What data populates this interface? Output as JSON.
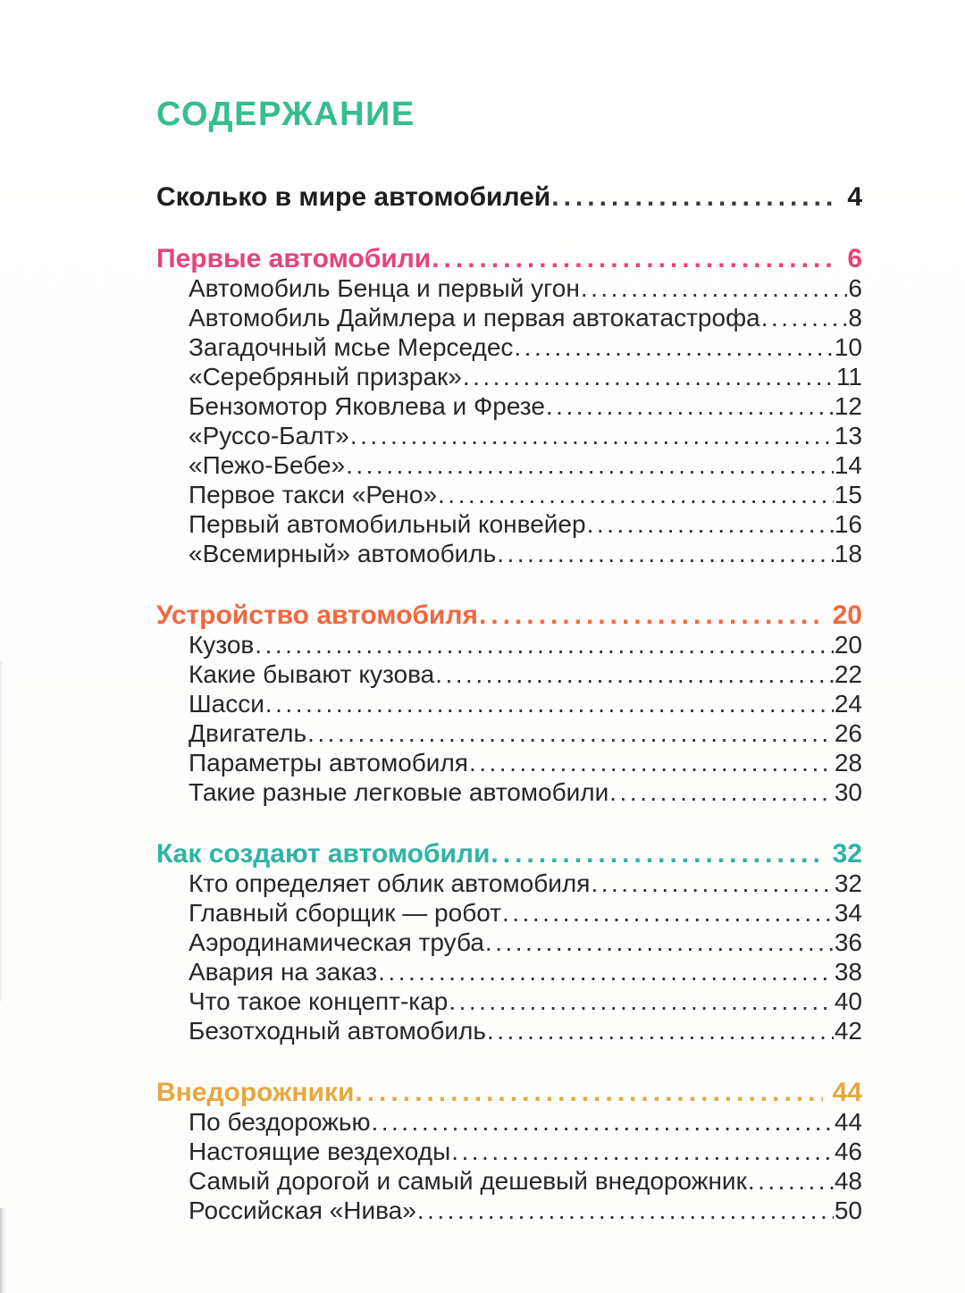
{
  "page": {
    "title": "СОДЕРЖАНИЕ",
    "title_color": "#35bd92",
    "text_color": "#272727"
  },
  "toc": {
    "intro": {
      "label": "Сколько в мире автомобилей",
      "page": "4"
    },
    "sections": [
      {
        "title": "Первые автомобили",
        "page": "6",
        "color": "#e74379",
        "items": [
          {
            "label": "Автомобиль Бенца и первый угон",
            "page": "6"
          },
          {
            "label": "Автомобиль Даймлера и первая автокатастрофа",
            "page": "8"
          },
          {
            "label": "Загадочный мсье Мерседес",
            "page": "10"
          },
          {
            "label": "«Серебряный призрак»",
            "page": "11"
          },
          {
            "label": "Бензомотор Яковлева и Фрезе",
            "page": "12"
          },
          {
            "label": "«Руссо-Балт»",
            "page": "13"
          },
          {
            "label": "«Пежо-Бебе»",
            "page": "14"
          },
          {
            "label": "Первое такси «Рено»",
            "page": "15"
          },
          {
            "label": "Первый автомобильный конвейер",
            "page": "16"
          },
          {
            "label": "«Всемирный» автомобиль",
            "page": "18"
          }
        ]
      },
      {
        "title": "Устройство автомобиля",
        "page": "20",
        "color": "#f3683f",
        "items": [
          {
            "label": "Кузов",
            "page": "20"
          },
          {
            "label": "Какие бывают кузова",
            "page": "22"
          },
          {
            "label": "Шасси",
            "page": "24"
          },
          {
            "label": "Двигатель",
            "page": "26"
          },
          {
            "label": "Параметры автомобиля",
            "page": "28"
          },
          {
            "label": "Такие разные легковые автомобили",
            "page": "30"
          }
        ]
      },
      {
        "title": "Как создают автомобили",
        "page": "32",
        "color": "#2fb3a4",
        "items": [
          {
            "label": "Кто определяет облик автомобиля",
            "page": "32"
          },
          {
            "label": "Главный сборщик — робот",
            "page": "34"
          },
          {
            "label": "Аэродинамическая труба",
            "page": "36"
          },
          {
            "label": "Авария на заказ",
            "page": "38"
          },
          {
            "label": "Что такое концепт-кар",
            "page": "40"
          },
          {
            "label": "Безотходный автомобиль",
            "page": "42"
          }
        ]
      },
      {
        "title": "Внедорожники",
        "page": "44",
        "color": "#e6a83e",
        "items": [
          {
            "label": "По бездорожью",
            "page": "44"
          },
          {
            "label": "Настоящие вездеходы",
            "page": "46"
          },
          {
            "label": "Самый дорогой и самый дешевый внедорожник",
            "page": "48"
          },
          {
            "label": "Российская «Нива»",
            "page": "50"
          }
        ]
      }
    ]
  }
}
